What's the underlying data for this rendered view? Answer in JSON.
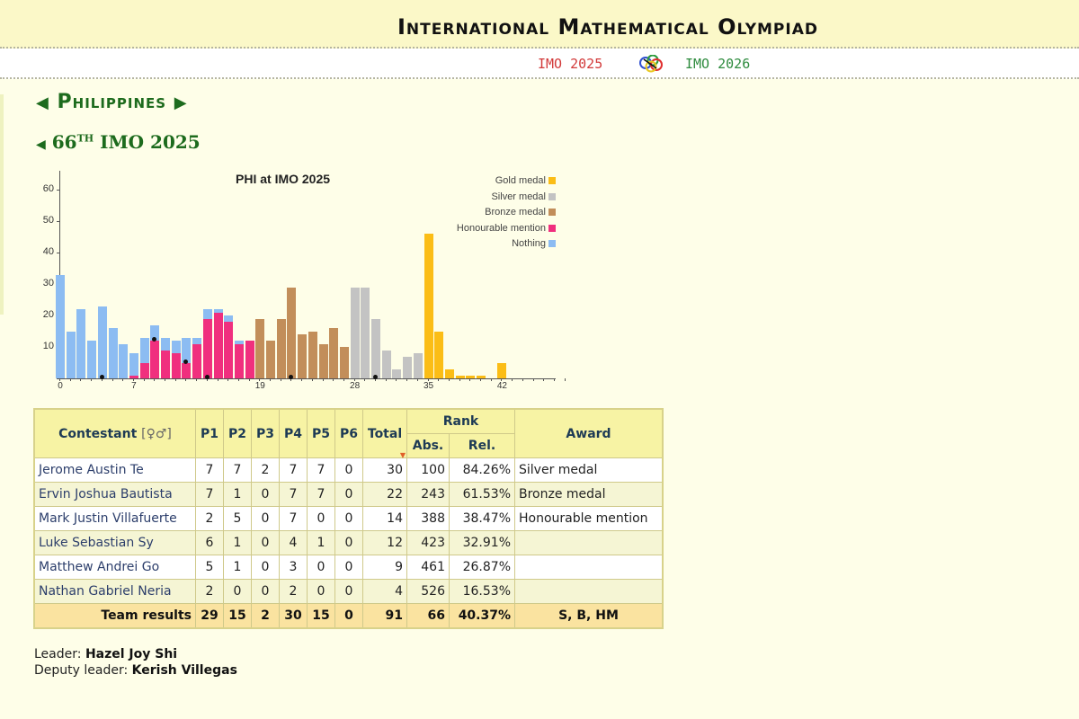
{
  "header": {
    "site_title": "International Mathematical Olympiad",
    "nav_prev": "IMO 2025",
    "nav_next": "IMO 2026",
    "logo_icon": "imo-rings-logo"
  },
  "country": {
    "name": "Philippines",
    "prev_arrow": "◀",
    "next_arrow": "▶"
  },
  "edition": {
    "arrow": "◀",
    "number": "66",
    "suffix": "TH",
    "label": "IMO 2025"
  },
  "colors": {
    "gold": "#fbbd16",
    "silver": "#c3c3c3",
    "bronze": "#c28e5a",
    "honourable": "#f02f7e",
    "nothing": "#8cbcf2"
  },
  "chart_data": {
    "type": "bar",
    "title": "PHI at IMO 2025",
    "xlabel": "",
    "ylabel": "",
    "ylim": [
      0,
      65
    ],
    "xlim": [
      0,
      48
    ],
    "yticks": [
      10,
      20,
      30,
      40,
      50,
      60
    ],
    "xticks": [
      0,
      7,
      19,
      28,
      35,
      42
    ],
    "grid": false,
    "legend_position": "top-right",
    "legend": [
      "Gold medal",
      "Silver medal",
      "Bronze medal",
      "Honourable mention",
      "Nothing"
    ],
    "categories": [
      0,
      1,
      2,
      3,
      4,
      5,
      6,
      7,
      8,
      9,
      10,
      11,
      12,
      13,
      14,
      15,
      16,
      17,
      18,
      19,
      20,
      21,
      22,
      23,
      24,
      25,
      26,
      27,
      28,
      29,
      30,
      31,
      32,
      33,
      34,
      35,
      36,
      37,
      38,
      39,
      40,
      41,
      42
    ],
    "series": [
      {
        "name": "Nothing",
        "values": [
          33,
          15,
          22,
          12,
          23,
          16,
          11,
          7,
          8,
          5,
          4,
          4,
          8,
          2,
          3,
          1,
          2,
          1,
          0,
          0,
          0,
          0,
          0,
          0,
          0,
          0,
          0,
          0,
          0,
          0,
          0,
          0,
          0,
          0,
          0,
          0,
          0,
          0,
          0,
          0,
          0,
          0,
          0
        ]
      },
      {
        "name": "Honourable mention",
        "values": [
          0,
          0,
          0,
          0,
          0,
          0,
          0,
          1,
          5,
          12,
          9,
          8,
          5,
          11,
          19,
          21,
          18,
          11,
          12,
          0,
          0,
          0,
          0,
          0,
          0,
          0,
          0,
          0,
          0,
          0,
          0,
          0,
          0,
          0,
          0,
          0,
          0,
          0,
          0,
          0,
          0,
          0,
          0
        ]
      },
      {
        "name": "Bronze medal",
        "values": [
          0,
          0,
          0,
          0,
          0,
          0,
          0,
          0,
          0,
          0,
          0,
          0,
          0,
          0,
          0,
          0,
          0,
          0,
          0,
          19,
          12,
          19,
          29,
          14,
          15,
          11,
          16,
          10,
          0,
          0,
          0,
          0,
          0,
          0,
          0,
          0,
          0,
          0,
          0,
          0,
          0,
          0,
          0
        ]
      },
      {
        "name": "Silver medal",
        "values": [
          0,
          0,
          0,
          0,
          0,
          0,
          0,
          0,
          0,
          0,
          0,
          0,
          0,
          0,
          0,
          0,
          0,
          0,
          0,
          0,
          0,
          0,
          0,
          0,
          0,
          0,
          0,
          0,
          29,
          29,
          19,
          9,
          3,
          7,
          8,
          0,
          0,
          0,
          0,
          0,
          0,
          0,
          0
        ]
      },
      {
        "name": "Gold medal",
        "values": [
          0,
          0,
          0,
          0,
          0,
          0,
          0,
          0,
          0,
          0,
          0,
          0,
          0,
          0,
          0,
          0,
          0,
          0,
          0,
          0,
          0,
          0,
          0,
          0,
          0,
          0,
          0,
          0,
          0,
          0,
          0,
          0,
          0,
          0,
          0,
          46,
          15,
          3,
          1,
          1,
          1,
          0,
          5
        ]
      }
    ],
    "team_markers": [
      {
        "score": 4,
        "y": 0
      },
      {
        "score": 9,
        "y": 12
      },
      {
        "score": 12,
        "y": 5
      },
      {
        "score": 14,
        "y": 0
      },
      {
        "score": 22,
        "y": 0
      },
      {
        "score": 30,
        "y": 0
      }
    ]
  },
  "table": {
    "headers": {
      "contestant": "Contestant",
      "gender_icon": "[♀♂]",
      "p1": "P1",
      "p2": "P2",
      "p3": "P3",
      "p4": "P4",
      "p5": "P5",
      "p6": "P6",
      "total": "Total",
      "rank": "Rank",
      "abs": "Abs.",
      "rel": "Rel.",
      "award": "Award",
      "sort_indicator": "▼"
    },
    "rows": [
      {
        "name": "Jerome Austin Te",
        "p1": "7",
        "p2": "7",
        "p3": "2",
        "p4": "7",
        "p5": "7",
        "p6": "0",
        "total": "30",
        "abs": "100",
        "rel": "84.26%",
        "award": "Silver medal"
      },
      {
        "name": "Ervin Joshua Bautista",
        "p1": "7",
        "p2": "1",
        "p3": "0",
        "p4": "7",
        "p5": "7",
        "p6": "0",
        "total": "22",
        "abs": "243",
        "rel": "61.53%",
        "award": "Bronze medal"
      },
      {
        "name": "Mark Justin Villafuerte",
        "p1": "2",
        "p2": "5",
        "p3": "0",
        "p4": "7",
        "p5": "0",
        "p6": "0",
        "total": "14",
        "abs": "388",
        "rel": "38.47%",
        "award": "Honourable mention"
      },
      {
        "name": "Luke Sebastian Sy",
        "p1": "6",
        "p2": "1",
        "p3": "0",
        "p4": "4",
        "p5": "1",
        "p6": "0",
        "total": "12",
        "abs": "423",
        "rel": "32.91%",
        "award": ""
      },
      {
        "name": "Matthew Andrei Go",
        "p1": "5",
        "p2": "1",
        "p3": "0",
        "p4": "3",
        "p5": "0",
        "p6": "0",
        "total": "9",
        "abs": "461",
        "rel": "26.87%",
        "award": ""
      },
      {
        "name": "Nathan Gabriel Neria",
        "p1": "2",
        "p2": "0",
        "p3": "0",
        "p4": "2",
        "p5": "0",
        "p6": "0",
        "total": "4",
        "abs": "526",
        "rel": "16.53%",
        "award": ""
      }
    ],
    "team": {
      "label": "Team results",
      "p1": "29",
      "p2": "15",
      "p3": "2",
      "p4": "30",
      "p5": "15",
      "p6": "0",
      "total": "91",
      "abs": "66",
      "rel": "40.37%",
      "award": "S, B, HM"
    }
  },
  "leaders": {
    "leader_label": "Leader:",
    "leader_name": "Hazel Joy Shi",
    "deputy_label": "Deputy leader:",
    "deputy_name": "Kerish Villegas"
  }
}
